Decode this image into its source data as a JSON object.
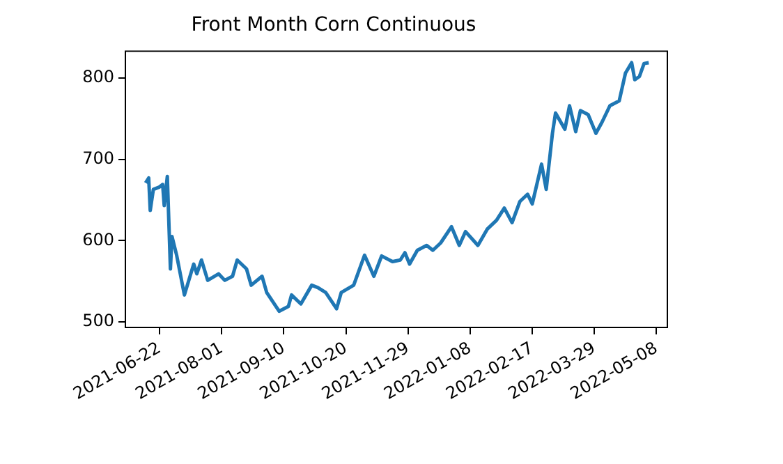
{
  "chart_data": {
    "type": "line",
    "title": "Front Month Corn Continuous",
    "x": [
      "2021-06-13",
      "2021-06-15",
      "2021-06-16",
      "2021-06-18",
      "2021-06-22",
      "2021-06-24",
      "2021-06-25",
      "2021-06-27",
      "2021-06-29",
      "2021-06-30",
      "2021-07-03",
      "2021-07-08",
      "2021-07-14",
      "2021-07-16",
      "2021-07-19",
      "2021-07-23",
      "2021-07-30",
      "2021-08-03",
      "2021-08-08",
      "2021-08-11",
      "2021-08-17",
      "2021-08-20",
      "2021-08-27",
      "2021-08-30",
      "2021-09-07",
      "2021-09-13",
      "2021-09-15",
      "2021-09-21",
      "2021-09-28",
      "2021-10-02",
      "2021-10-07",
      "2021-10-14",
      "2021-10-17",
      "2021-10-25",
      "2021-11-01",
      "2021-11-07",
      "2021-11-12",
      "2021-11-19",
      "2021-11-24",
      "2021-11-27",
      "2021-11-30",
      "2021-12-05",
      "2021-12-11",
      "2021-12-15",
      "2021-12-20",
      "2021-12-27",
      "2022-01-01",
      "2022-01-05",
      "2022-01-13",
      "2022-01-19",
      "2022-01-25",
      "2022-01-30",
      "2022-02-04",
      "2022-02-09",
      "2022-02-14",
      "2022-02-17",
      "2022-02-23",
      "2022-02-26",
      "2022-03-02",
      "2022-03-04",
      "2022-03-10",
      "2022-03-13",
      "2022-03-17",
      "2022-03-20",
      "2022-03-25",
      "2022-03-30",
      "2022-04-03",
      "2022-04-08",
      "2022-04-14",
      "2022-04-18",
      "2022-04-22",
      "2022-04-24",
      "2022-04-27",
      "2022-04-30",
      "2022-05-03"
    ],
    "series": [
      {
        "color": "#1f77b4",
        "values": [
          671,
          677,
          637,
          663,
          666,
          669,
          643,
          679,
          565,
          605,
          582,
          533,
          571,
          559,
          576,
          551,
          559,
          551,
          556,
          576,
          565,
          545,
          556,
          536,
          513,
          519,
          533,
          522,
          545,
          542,
          536,
          516,
          536,
          545,
          582,
          556,
          581,
          574,
          576,
          585,
          571,
          588,
          594,
          588,
          597,
          617,
          594,
          611,
          594,
          614,
          625,
          640,
          622,
          648,
          657,
          645,
          694,
          663,
          732,
          757,
          737,
          766,
          734,
          760,
          755,
          732,
          746,
          766,
          772,
          806,
          819,
          798,
          802,
          818,
          819
        ]
      }
    ],
    "xlim": [
      "2021-05-31",
      "2022-05-15"
    ],
    "xticks": [
      "2021-06-22",
      "2021-08-01",
      "2021-09-10",
      "2021-10-20",
      "2021-11-29",
      "2022-01-08",
      "2022-02-17",
      "2022-03-29",
      "2022-05-08"
    ],
    "ylim": [
      493,
      833
    ],
    "yticks": [
      500,
      600,
      700,
      800
    ],
    "grid": false,
    "legend": false,
    "marker": "none",
    "line_style": "solid"
  }
}
